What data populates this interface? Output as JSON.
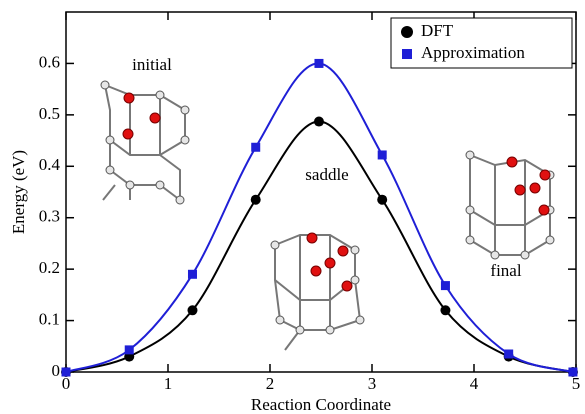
{
  "chart_data": {
    "type": "line",
    "x_label": "Reaction Coordinate",
    "y_label": "Energy (eV)",
    "x": [
      0,
      0.62,
      1.24,
      1.86,
      2.48,
      3.1,
      3.72,
      4.34,
      4.97
    ],
    "series": [
      {
        "name": "DFT",
        "color": "#000000",
        "marker": "circle",
        "values": [
          0,
          0.03,
          0.12,
          0.335,
          0.487,
          0.335,
          0.12,
          0.03,
          0
        ]
      },
      {
        "name": "Approximation",
        "color": "#1f1fd6",
        "marker": "square",
        "values": [
          0,
          0.043,
          0.19,
          0.437,
          0.6,
          0.422,
          0.168,
          0.035,
          0
        ]
      }
    ],
    "annotations": [
      "initial",
      "saddle",
      "final"
    ],
    "xlim": [
      0,
      5
    ],
    "xticks": [
      0,
      1,
      2,
      3,
      4,
      5
    ],
    "ylim": [
      0,
      0.7
    ],
    "yticks": [
      0,
      0.1,
      0.2,
      0.3,
      0.4,
      0.5,
      0.6
    ],
    "legend": "upper right"
  }
}
